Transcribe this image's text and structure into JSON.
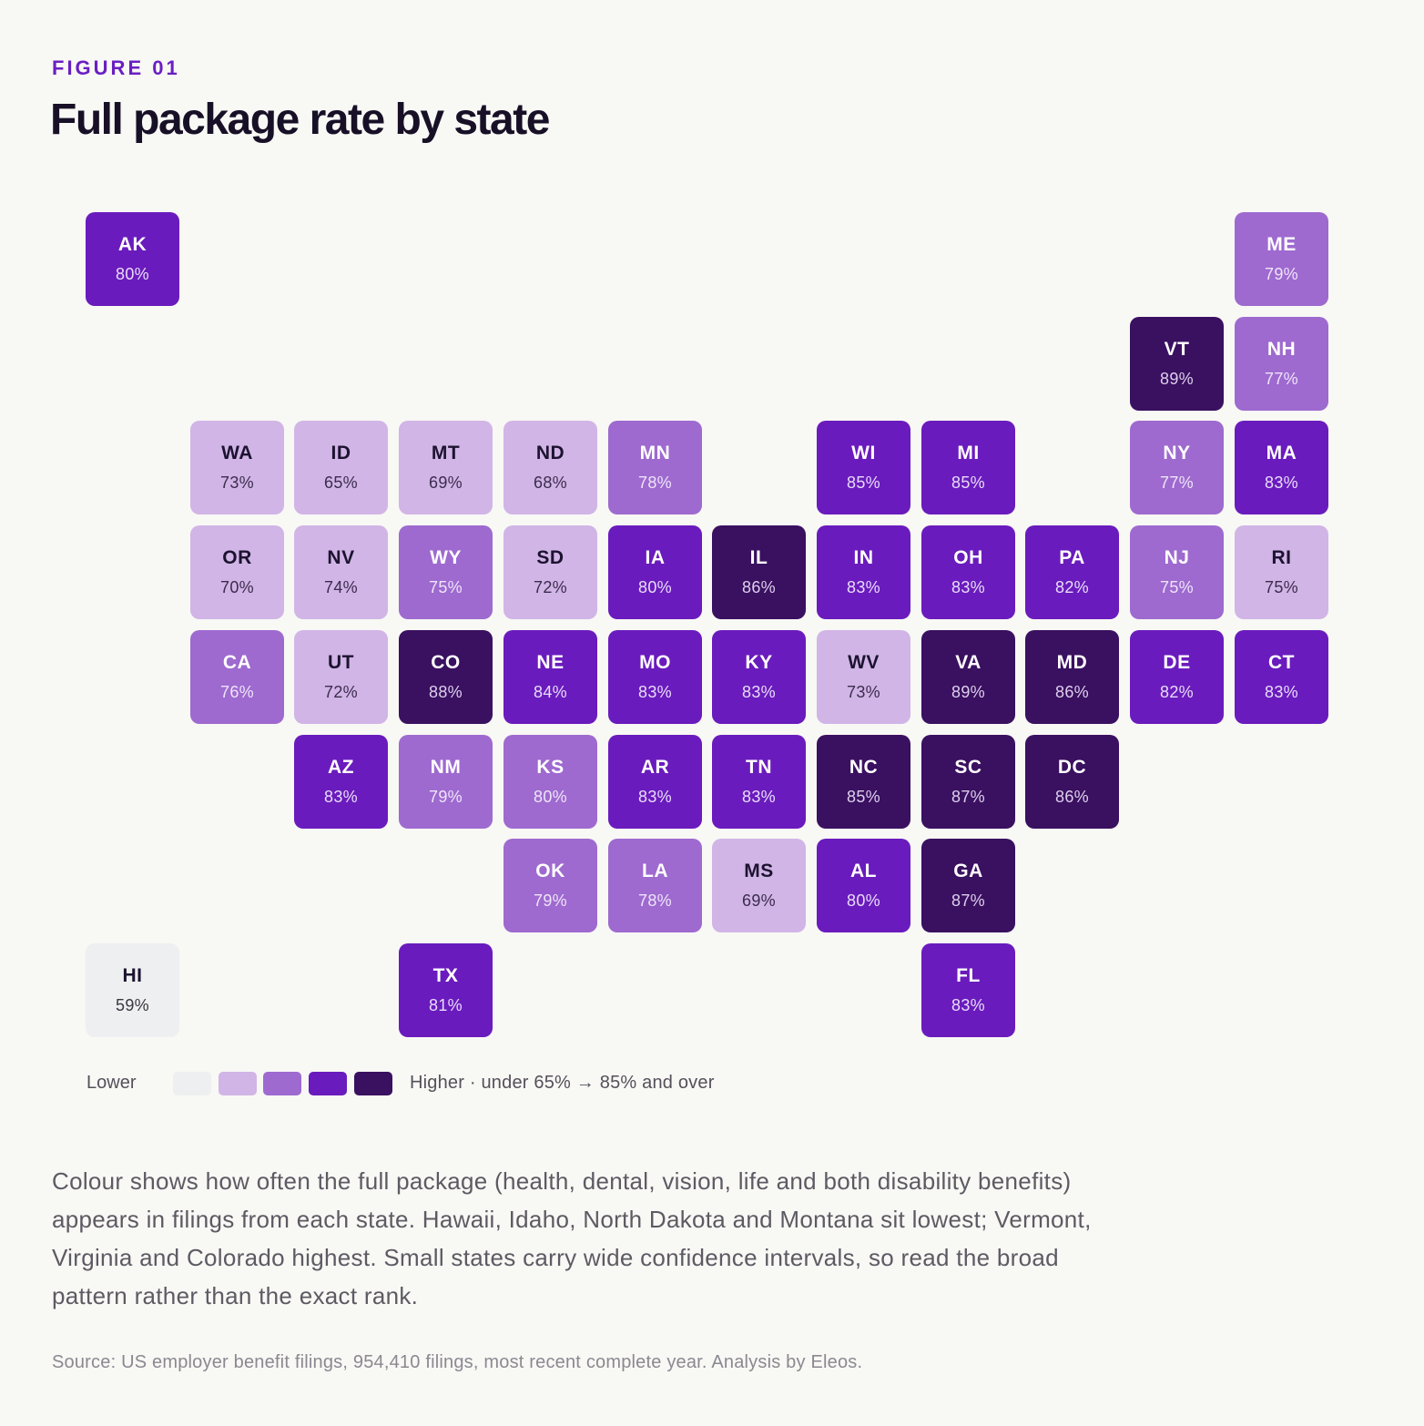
{
  "figure_label": "FIGURE 01",
  "title": "Full package rate by state",
  "legend": {
    "lower_label": "Lower",
    "higher_label": "Higher · under 65% → 85% and over",
    "colors": [
      "#eeeff0",
      "#d1b5e6",
      "#9e6acf",
      "#6a1bbd",
      "#3a1060"
    ]
  },
  "caption": "Colour shows how often the full package (health, dental, vision, life and both disability benefits) appears in filings from each state. Hawaii, Idaho, North Dakota and Montana sit lowest; Vermont, Virginia and Colorado highest. Small states carry wide confidence intervals, so read the broad pattern rather than the exact rank.",
  "source": "Source: US employer benefit filings, 954,410 filings, most recent complete year. Analysis by Eleos.",
  "chart_data": {
    "type": "heatmap",
    "title": "Full package rate by state",
    "unit": "%",
    "bins": [
      "under 65%",
      "65–75%",
      "75–80%",
      "80–85%",
      "85% and over"
    ],
    "states": [
      {
        "code": "AK",
        "value": 80,
        "bin": 3,
        "row": 0,
        "col": 0
      },
      {
        "code": "ME",
        "value": 79,
        "bin": 2,
        "row": 0,
        "col": 11
      },
      {
        "code": "VT",
        "value": 89,
        "bin": 4,
        "row": 1,
        "col": 10
      },
      {
        "code": "NH",
        "value": 77,
        "bin": 2,
        "row": 1,
        "col": 11
      },
      {
        "code": "WA",
        "value": 73,
        "bin": 1,
        "row": 2,
        "col": 1
      },
      {
        "code": "ID",
        "value": 65,
        "bin": 1,
        "row": 2,
        "col": 2
      },
      {
        "code": "MT",
        "value": 69,
        "bin": 1,
        "row": 2,
        "col": 3
      },
      {
        "code": "ND",
        "value": 68,
        "bin": 1,
        "row": 2,
        "col": 4
      },
      {
        "code": "MN",
        "value": 78,
        "bin": 2,
        "row": 2,
        "col": 5
      },
      {
        "code": "WI",
        "value": 85,
        "bin": 3,
        "row": 2,
        "col": 7
      },
      {
        "code": "MI",
        "value": 85,
        "bin": 3,
        "row": 2,
        "col": 8
      },
      {
        "code": "NY",
        "value": 77,
        "bin": 2,
        "row": 2,
        "col": 10
      },
      {
        "code": "MA",
        "value": 83,
        "bin": 3,
        "row": 2,
        "col": 11
      },
      {
        "code": "OR",
        "value": 70,
        "bin": 1,
        "row": 3,
        "col": 1
      },
      {
        "code": "NV",
        "value": 74,
        "bin": 1,
        "row": 3,
        "col": 2
      },
      {
        "code": "WY",
        "value": 75,
        "bin": 2,
        "row": 3,
        "col": 3
      },
      {
        "code": "SD",
        "value": 72,
        "bin": 1,
        "row": 3,
        "col": 4
      },
      {
        "code": "IA",
        "value": 80,
        "bin": 3,
        "row": 3,
        "col": 5
      },
      {
        "code": "IL",
        "value": 86,
        "bin": 4,
        "row": 3,
        "col": 6
      },
      {
        "code": "IN",
        "value": 83,
        "bin": 3,
        "row": 3,
        "col": 7
      },
      {
        "code": "OH",
        "value": 83,
        "bin": 3,
        "row": 3,
        "col": 8
      },
      {
        "code": "PA",
        "value": 82,
        "bin": 3,
        "row": 3,
        "col": 9
      },
      {
        "code": "NJ",
        "value": 75,
        "bin": 2,
        "row": 3,
        "col": 10
      },
      {
        "code": "RI",
        "value": 75,
        "bin": 1,
        "row": 3,
        "col": 11
      },
      {
        "code": "CA",
        "value": 76,
        "bin": 2,
        "row": 4,
        "col": 1
      },
      {
        "code": "UT",
        "value": 72,
        "bin": 1,
        "row": 4,
        "col": 2
      },
      {
        "code": "CO",
        "value": 88,
        "bin": 4,
        "row": 4,
        "col": 3
      },
      {
        "code": "NE",
        "value": 84,
        "bin": 3,
        "row": 4,
        "col": 4
      },
      {
        "code": "MO",
        "value": 83,
        "bin": 3,
        "row": 4,
        "col": 5
      },
      {
        "code": "KY",
        "value": 83,
        "bin": 3,
        "row": 4,
        "col": 6
      },
      {
        "code": "WV",
        "value": 73,
        "bin": 1,
        "row": 4,
        "col": 7
      },
      {
        "code": "VA",
        "value": 89,
        "bin": 4,
        "row": 4,
        "col": 8
      },
      {
        "code": "MD",
        "value": 86,
        "bin": 4,
        "row": 4,
        "col": 9
      },
      {
        "code": "DE",
        "value": 82,
        "bin": 3,
        "row": 4,
        "col": 10
      },
      {
        "code": "CT",
        "value": 83,
        "bin": 3,
        "row": 4,
        "col": 11
      },
      {
        "code": "AZ",
        "value": 83,
        "bin": 3,
        "row": 5,
        "col": 2
      },
      {
        "code": "NM",
        "value": 79,
        "bin": 2,
        "row": 5,
        "col": 3
      },
      {
        "code": "KS",
        "value": 80,
        "bin": 2,
        "row": 5,
        "col": 4
      },
      {
        "code": "AR",
        "value": 83,
        "bin": 3,
        "row": 5,
        "col": 5
      },
      {
        "code": "TN",
        "value": 83,
        "bin": 3,
        "row": 5,
        "col": 6
      },
      {
        "code": "NC",
        "value": 85,
        "bin": 4,
        "row": 5,
        "col": 7
      },
      {
        "code": "SC",
        "value": 87,
        "bin": 4,
        "row": 5,
        "col": 8
      },
      {
        "code": "DC",
        "value": 86,
        "bin": 4,
        "row": 5,
        "col": 9
      },
      {
        "code": "OK",
        "value": 79,
        "bin": 2,
        "row": 6,
        "col": 4
      },
      {
        "code": "LA",
        "value": 78,
        "bin": 2,
        "row": 6,
        "col": 5
      },
      {
        "code": "MS",
        "value": 69,
        "bin": 1,
        "row": 6,
        "col": 6
      },
      {
        "code": "AL",
        "value": 80,
        "bin": 3,
        "row": 6,
        "col": 7
      },
      {
        "code": "GA",
        "value": 87,
        "bin": 4,
        "row": 6,
        "col": 8
      },
      {
        "code": "HI",
        "value": 59,
        "bin": 0,
        "row": 7,
        "col": 0
      },
      {
        "code": "TX",
        "value": 81,
        "bin": 3,
        "row": 7,
        "col": 3
      },
      {
        "code": "FL",
        "value": 83,
        "bin": 3,
        "row": 7,
        "col": 8
      }
    ]
  }
}
